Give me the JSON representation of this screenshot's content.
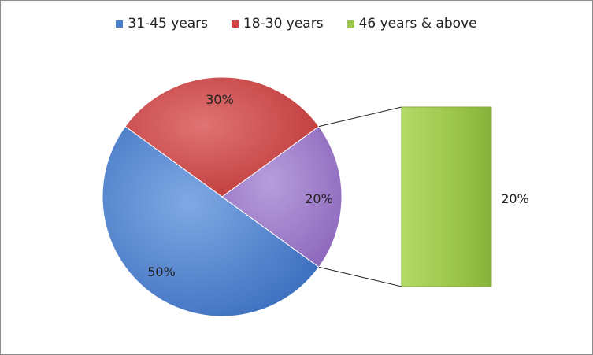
{
  "chart_data": {
    "type": "pie",
    "subtype": "pie-of-bar",
    "slices": [
      {
        "name": "31-45 years",
        "value": 50,
        "label": "50%",
        "color": "#4a7ec9"
      },
      {
        "name": "18-30 years",
        "value": 30,
        "label": "30%",
        "color": "#cc4444"
      },
      {
        "name": "46 years & above",
        "value": 20,
        "label": "20%",
        "color": "#9f7cc6",
        "bar_color": "#9bc54a"
      }
    ],
    "bar": {
      "value": 20,
      "label": "20%"
    },
    "legend_position": "top"
  }
}
